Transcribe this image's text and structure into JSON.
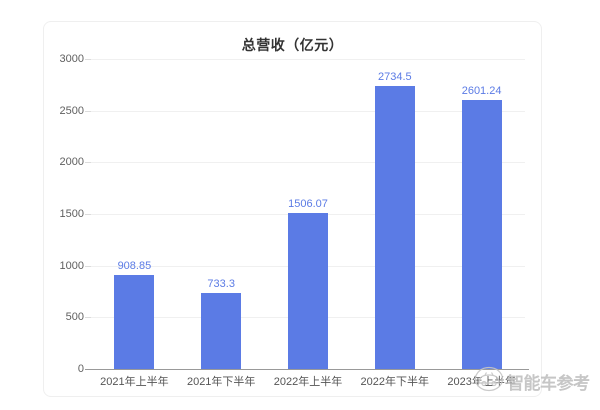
{
  "chart_data": {
    "type": "bar",
    "title": "总营收（亿元）",
    "categories": [
      "2021年上半年",
      "2021年下半年",
      "2022年上半年",
      "2022年下半年",
      "2023年上半年"
    ],
    "values": [
      908.85,
      733.3,
      1506.07,
      2734.5,
      2601.24
    ],
    "value_labels": [
      "908.85",
      "733.3",
      "1506.07",
      "2734.5",
      "2601.24"
    ],
    "ylim": [
      0,
      3000
    ],
    "yticks": [
      0,
      500,
      1000,
      1500,
      2000,
      2500,
      3000
    ],
    "grid": "horizontal",
    "legend": "none",
    "show_value_labels": true,
    "colors": {
      "bar": "#5b7be5",
      "value_label": "#5b7be5",
      "grid": "#f0f0f0",
      "axis_line": "#999999",
      "tick": "#dcdcdc",
      "axis_text": "#5f5f5f",
      "title_text": "#333333"
    }
  },
  "watermark": {
    "text": "智能车参考",
    "icon": "car-logo-icon",
    "color": "#c2c2c2"
  }
}
